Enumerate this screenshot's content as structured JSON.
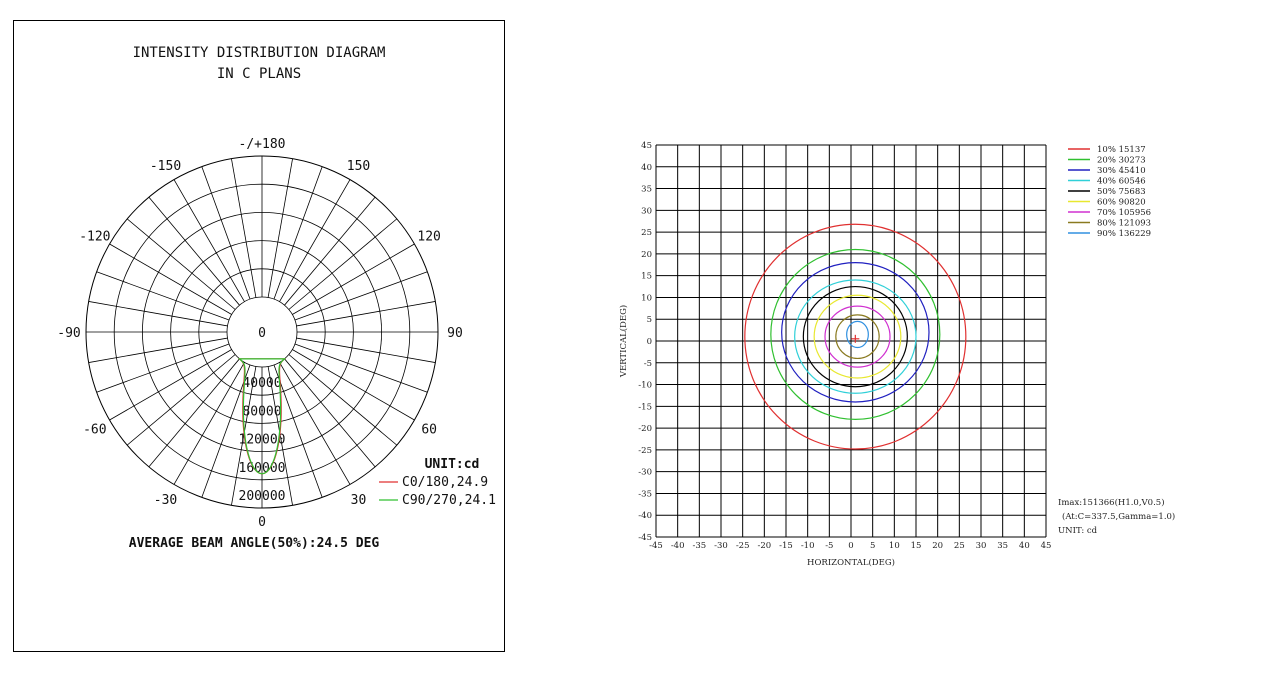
{
  "chart_data": [
    {
      "type": "polar",
      "title": "INTENSITY DISTRIBUTION DIAGRAM",
      "subtitle": "IN C PLANS",
      "angle_labels": [
        {
          "angle": 180,
          "text": "-/+180"
        },
        {
          "angle": -150,
          "text": "-150"
        },
        {
          "angle": 150,
          "text": "150"
        },
        {
          "angle": -120,
          "text": "-120"
        },
        {
          "angle": 120,
          "text": "120"
        },
        {
          "angle": -90,
          "text": "-90"
        },
        {
          "angle": 90,
          "text": "90"
        },
        {
          "angle": -60,
          "text": "-60"
        },
        {
          "angle": 60,
          "text": "60"
        },
        {
          "angle": -30,
          "text": "-30"
        },
        {
          "angle": 30,
          "text": "30"
        },
        {
          "angle": 0,
          "text": "0"
        }
      ],
      "center_label": "0",
      "radial_ticks": [
        "40000",
        "80000",
        "120000",
        "160000",
        "200000"
      ],
      "rlim": [
        0,
        200000
      ],
      "unit_label": "UNIT:cd",
      "series": [
        {
          "name": "C0/180,24.9",
          "color": "#e03030",
          "peak": 151366,
          "half_angle": 12.45
        },
        {
          "name": "C90/270,24.1",
          "color": "#30c030",
          "peak": 151366,
          "half_angle": 12.05
        }
      ],
      "footer": "AVERAGE BEAM ANGLE(50%):24.5 DEG"
    },
    {
      "type": "contour",
      "xlabel": "HORIZONTAL(DEG)",
      "ylabel": "VERTICAL(DEG)",
      "xlim": [
        -45,
        45
      ],
      "ylim": [
        -45,
        45
      ],
      "ticks": [
        -45,
        -40,
        -35,
        -30,
        -25,
        -20,
        -15,
        -10,
        -5,
        0,
        5,
        10,
        15,
        20,
        25,
        30,
        35,
        40,
        45
      ],
      "grid": true,
      "levels": [
        {
          "label": "10% 15137",
          "color": "#e03030",
          "rx": 25.5,
          "ry": 25.8,
          "cx": 1.0,
          "cy": 1.0
        },
        {
          "label": "20% 30273",
          "color": "#30c030",
          "rx": 19.5,
          "ry": 19.5,
          "cx": 1.0,
          "cy": 1.5
        },
        {
          "label": "30% 45410",
          "color": "#2020c0",
          "rx": 17.0,
          "ry": 16.0,
          "cx": 1.0,
          "cy": 2.0
        },
        {
          "label": "40% 60546",
          "color": "#30d0d8",
          "rx": 14.0,
          "ry": 13.0,
          "cx": 1.0,
          "cy": 1.0
        },
        {
          "label": "50% 75683",
          "color": "#000000",
          "rx": 12.0,
          "ry": 11.5,
          "cx": 1.0,
          "cy": 1.0
        },
        {
          "label": "60% 90820",
          "color": "#e8e830",
          "rx": 10.0,
          "ry": 9.5,
          "cx": 1.5,
          "cy": 1.0
        },
        {
          "label": "70% 105956",
          "color": "#d030d0",
          "rx": 7.5,
          "ry": 7.0,
          "cx": 1.5,
          "cy": 1.0
        },
        {
          "label": "80% 121093",
          "color": "#8a7a20",
          "rx": 5.0,
          "ry": 5.0,
          "cx": 1.5,
          "cy": 1.0
        },
        {
          "label": "90% 136229",
          "color": "#3090e0",
          "rx": 2.5,
          "ry": 3.0,
          "cx": 1.5,
          "cy": 1.5
        }
      ],
      "peak_marker": {
        "x": 1.0,
        "y": 0.5,
        "color": "#e03030"
      },
      "info": [
        "Imax:151366(H1.0,V0.5)",
        "(At:C=337.5,Gamma=1.0)",
        "UNIT: cd"
      ]
    }
  ]
}
